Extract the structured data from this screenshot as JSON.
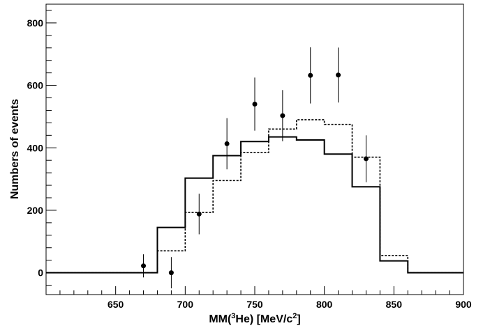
{
  "chart_data": {
    "type": "histogram_with_errorbars",
    "xlabel": "MM(³He) [MeV/c²]",
    "ylabel": "Numbers of events",
    "xlim": [
      600,
      900
    ],
    "ylim": [
      -70,
      860
    ],
    "x_ticks": [
      650,
      700,
      750,
      800,
      850,
      900
    ],
    "y_ticks": [
      0,
      200,
      400,
      600,
      800
    ],
    "x_tick_labels": [
      "650",
      "700",
      "750",
      "800",
      "850",
      "900"
    ],
    "y_tick_labels": [
      "0",
      "200",
      "400",
      "600",
      "800"
    ],
    "grid": false,
    "bin_edges": [
      600,
      680,
      700,
      720,
      740,
      760,
      780,
      800,
      820,
      840,
      860,
      900
    ],
    "series": [
      {
        "style": "solid-step",
        "values": [
          0,
          145,
          303,
          375,
          420,
          435,
          425,
          380,
          275,
          38,
          0
        ]
      },
      {
        "style": "dashed-step",
        "values": [
          0,
          70,
          193,
          295,
          385,
          460,
          490,
          475,
          370,
          55,
          0
        ]
      },
      {
        "style": "points-with-errorbars",
        "points": [
          {
            "x": 670,
            "y": 22,
            "err": 37
          },
          {
            "x": 690,
            "y": 0,
            "err": 50
          },
          {
            "x": 710,
            "y": 188,
            "err": 65
          },
          {
            "x": 730,
            "y": 413,
            "err": 82
          },
          {
            "x": 750,
            "y": 540,
            "err": 85
          },
          {
            "x": 770,
            "y": 503,
            "err": 82
          },
          {
            "x": 790,
            "y": 632,
            "err": 90
          },
          {
            "x": 810,
            "y": 633,
            "err": 88
          },
          {
            "x": 830,
            "y": 365,
            "err": 75
          }
        ]
      }
    ]
  }
}
